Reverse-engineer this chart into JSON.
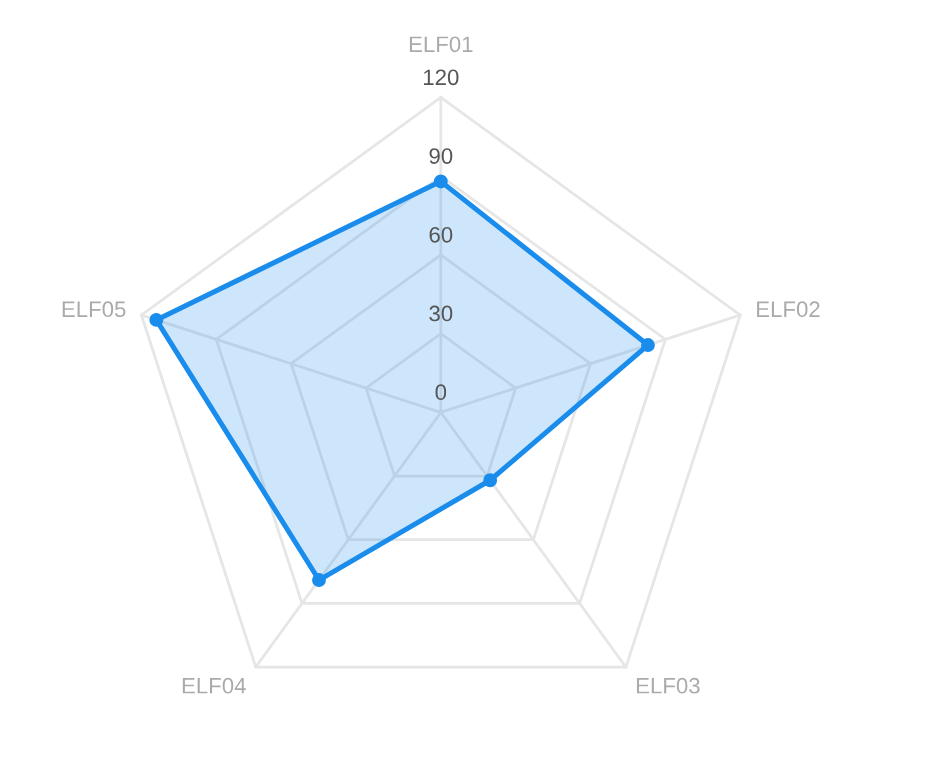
{
  "chart_data": {
    "type": "radar",
    "categories": [
      "ELF01",
      "ELF02",
      "ELF03",
      "ELF04",
      "ELF05"
    ],
    "series": [
      {
        "color": "#1a8cec",
        "values": [
          88,
          83,
          32,
          79,
          114
        ]
      }
    ],
    "ylim": [
      0,
      120
    ],
    "yticks": [
      0,
      30,
      60,
      90,
      120
    ],
    "grid": true,
    "marker": "circle",
    "line_style": "solid"
  }
}
